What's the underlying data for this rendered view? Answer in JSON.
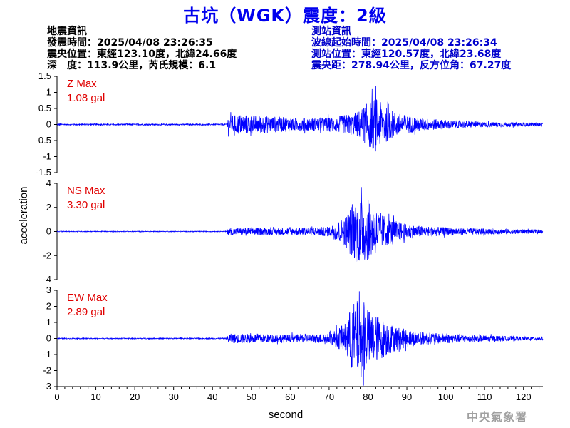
{
  "header": {
    "title": "古坑（WGK）震度：2級"
  },
  "quake_info": {
    "heading": "地震資訊",
    "time": "發震時間：2025/04/08 23:26:35",
    "location": "震央位置：東經123.10度，北緯24.66度",
    "depth_mag": "深　度：113.9公里，芮氏規模：6.1"
  },
  "station_info": {
    "heading": "測站資訊",
    "wave_start": "波線起始時間：2025/04/08 23:26:34",
    "location": "測站位置：東經120.57度，北緯23.68度",
    "distance": "震央距：278.94公里，反方位角：67.27度"
  },
  "footer": {
    "agency": "中央氣象署"
  },
  "colors": {
    "trace": "#0000ff",
    "max_label": "#e00000",
    "title": "#0000ee"
  },
  "chart_data": {
    "type": "line",
    "xlabel": "second",
    "ylabel": "acceleration",
    "xlim": [
      0,
      125
    ],
    "xticks": [
      0,
      10,
      20,
      30,
      40,
      50,
      60,
      70,
      80,
      90,
      100,
      110,
      120
    ],
    "panels": [
      {
        "name": "Z",
        "max_label": "Z Max",
        "max_value": "1.08 gal",
        "ylim": [
          -1.5,
          1.5
        ],
        "yticks": [
          -1.5,
          -1,
          -0.5,
          0,
          0.5,
          1,
          1.5
        ],
        "ytick_labels": [
          "-1.5",
          "-1",
          "-0.5",
          "0",
          "0.5",
          "1",
          "1.5"
        ],
        "envelope": {
          "t": [
            0,
            43.5,
            44,
            47,
            52,
            60,
            68,
            72,
            76,
            78,
            80,
            82,
            84,
            86,
            88,
            90,
            94,
            100,
            110,
            120,
            125
          ],
          "amp": [
            0.02,
            0.02,
            0.25,
            0.32,
            0.28,
            0.22,
            0.2,
            0.25,
            0.35,
            0.45,
            0.7,
            0.85,
            0.6,
            0.45,
            0.35,
            0.28,
            0.2,
            0.14,
            0.08,
            0.06,
            0.05
          ]
        }
      },
      {
        "name": "NS",
        "max_label": "NS Max",
        "max_value": "3.30 gal",
        "ylim": [
          -4,
          4
        ],
        "yticks": [
          -4,
          -2,
          0,
          2,
          4
        ],
        "ytick_labels": [
          "-4",
          "-2",
          "0",
          "2",
          "4"
        ],
        "envelope": {
          "t": [
            0,
            43.5,
            44,
            50,
            60,
            70,
            74,
            76,
            78,
            80,
            82,
            84,
            86,
            88,
            90,
            94,
            100,
            110,
            120,
            125
          ],
          "amp": [
            0.03,
            0.03,
            0.3,
            0.3,
            0.3,
            0.4,
            1.2,
            2.3,
            2.8,
            2.4,
            1.9,
            1.4,
            1.0,
            0.8,
            0.6,
            0.45,
            0.35,
            0.25,
            0.18,
            0.15
          ]
        }
      },
      {
        "name": "EW",
        "max_label": "EW Max",
        "max_value": "2.89 gal",
        "ylim": [
          -3,
          3
        ],
        "yticks": [
          -3,
          -2,
          -1,
          0,
          1,
          2,
          3
        ],
        "ytick_labels": [
          "-3",
          "-2",
          "-1",
          "0",
          "1",
          "2",
          "3"
        ],
        "envelope": {
          "t": [
            0,
            43.5,
            44,
            50,
            60,
            70,
            74,
            76,
            78,
            80,
            82,
            84,
            86,
            88,
            90,
            94,
            100,
            110,
            120,
            125
          ],
          "amp": [
            0.03,
            0.03,
            0.3,
            0.28,
            0.25,
            0.3,
            0.9,
            2.2,
            2.5,
            1.8,
            1.5,
            1.2,
            0.9,
            0.7,
            0.55,
            0.4,
            0.3,
            0.2,
            0.12,
            0.1
          ]
        }
      }
    ]
  }
}
